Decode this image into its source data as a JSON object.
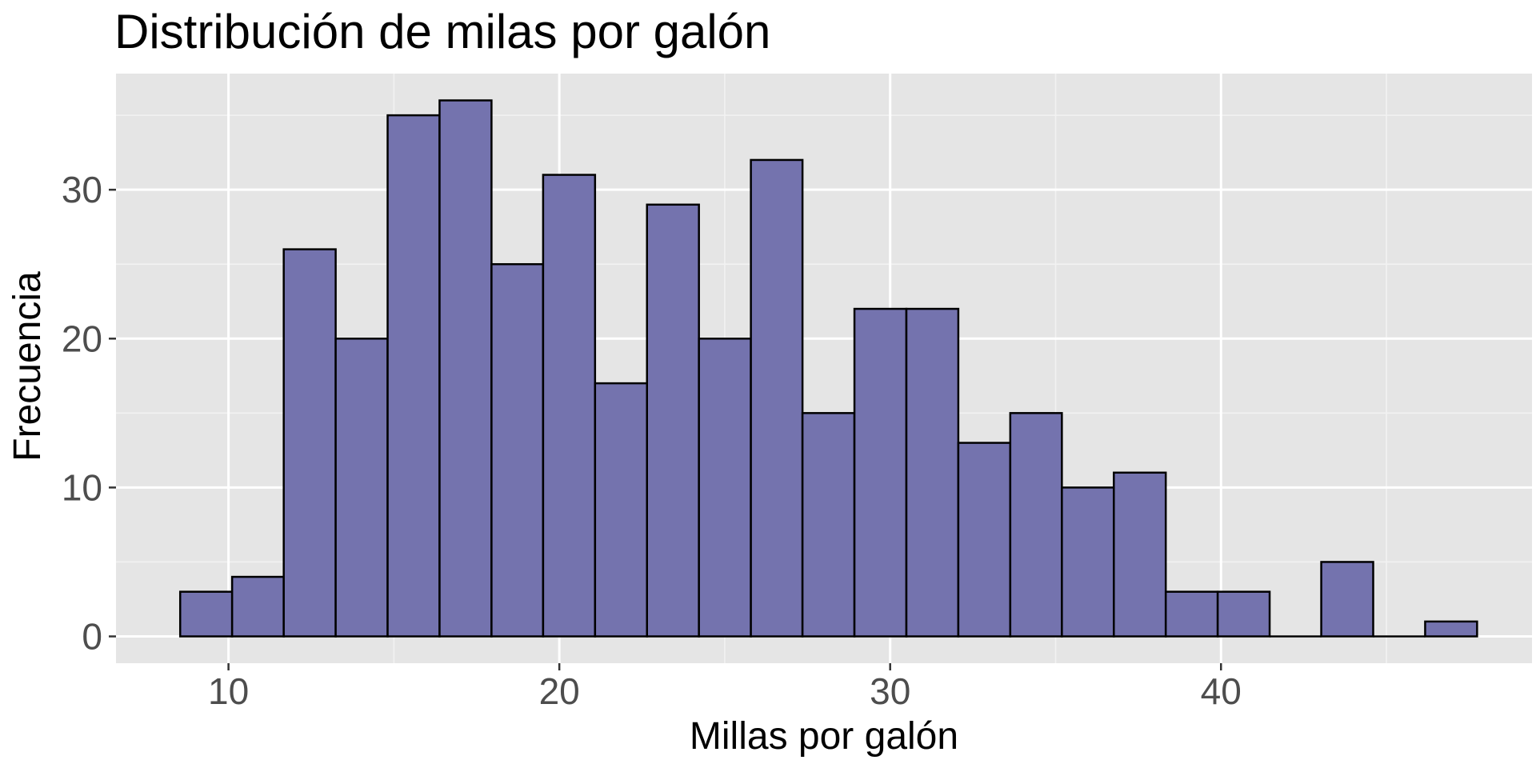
{
  "chart_data": {
    "type": "histogram",
    "title": "Distribución de milas por galón",
    "xlabel": "Millas por galón",
    "ylabel": "Frecuencia",
    "xlim": [
      6.6,
      49.4
    ],
    "ylim": [
      -1.8,
      37.8
    ],
    "x_ticks": [
      10,
      20,
      30,
      40
    ],
    "x_tick_labels": [
      "10",
      "20",
      "30",
      "40"
    ],
    "y_ticks": [
      0,
      10,
      20,
      30
    ],
    "y_tick_labels": [
      "0",
      "10",
      "20",
      "30"
    ],
    "bin_edges": [
      8.54,
      10.11,
      11.67,
      13.24,
      14.81,
      16.38,
      17.95,
      19.51,
      21.08,
      22.65,
      24.22,
      25.79,
      27.35,
      28.92,
      30.49,
      32.06,
      33.63,
      35.19,
      36.76,
      38.33,
      39.9,
      41.47,
      43.03,
      44.6,
      46.17,
      47.74
    ],
    "values": [
      3,
      4,
      26,
      20,
      35,
      36,
      25,
      31,
      17,
      29,
      20,
      32,
      15,
      22,
      22,
      13,
      15,
      10,
      11,
      3,
      3,
      0,
      5,
      0,
      1
    ],
    "grid": true,
    "legend": "none",
    "colors": {
      "bar_fill": "#7473ae",
      "bar_stroke": "#000000",
      "panel_background": "#e5e5e5",
      "grid_major": "#ffffff",
      "grid_minor": "#f2f2f2",
      "tick_text": "#4d4d4d"
    }
  }
}
